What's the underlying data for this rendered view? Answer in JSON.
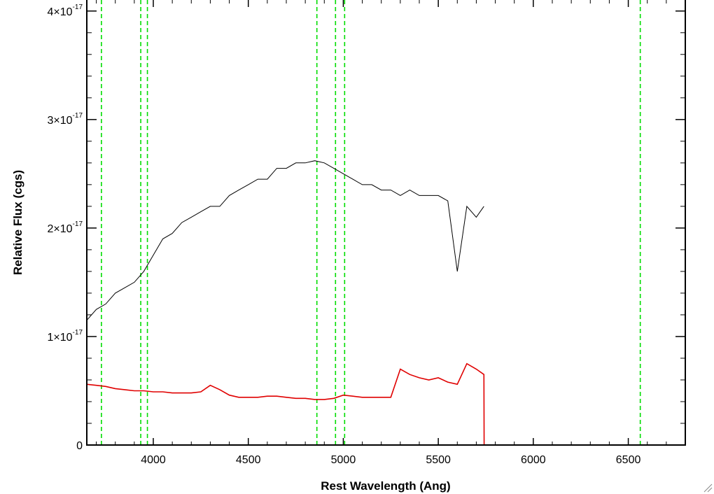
{
  "chart_data": {
    "type": "line",
    "title": "",
    "xlabel": "Rest Wavelength (Ang)",
    "ylabel": "Relative Flux (cgs)",
    "xlim": [
      3650,
      6800
    ],
    "ylim": [
      0,
      4.05e-17
    ],
    "x_ticks": [
      {
        "value": 4000,
        "label": "4000"
      },
      {
        "value": 4500,
        "label": "4500"
      },
      {
        "value": 5000,
        "label": "5000"
      },
      {
        "value": 5500,
        "label": "5500"
      },
      {
        "value": 6000,
        "label": "6000"
      },
      {
        "value": 6500,
        "label": "6500"
      }
    ],
    "y_ticks": [
      {
        "value": 0,
        "mantissa": "0",
        "exponent": ""
      },
      {
        "value": 1e-17,
        "mantissa": "1×10",
        "exponent": "-17"
      },
      {
        "value": 2e-17,
        "mantissa": "2×10",
        "exponent": "-17"
      },
      {
        "value": 3e-17,
        "mantissa": "3×10",
        "exponent": "-17"
      },
      {
        "value": 4e-17,
        "mantissa": "4×10",
        "exponent": "-17"
      }
    ],
    "reference_lines": [
      3727,
      3934,
      3969,
      4861,
      4959,
      5007,
      6563
    ],
    "series": [
      {
        "color": "#000000",
        "x": [
          3650,
          3700,
          3750,
          3800,
          3850,
          3900,
          3950,
          4000,
          4050,
          4100,
          4150,
          4200,
          4250,
          4300,
          4350,
          4400,
          4450,
          4500,
          4550,
          4600,
          4650,
          4700,
          4750,
          4800,
          4850,
          4900,
          4950,
          5000,
          5050,
          5100,
          5150,
          5200,
          5250,
          5300,
          5350,
          5400,
          5450,
          5500,
          5550,
          5600,
          5650,
          5700,
          5740
        ],
        "y": [
          1.15e-17,
          1.25e-17,
          1.3e-17,
          1.4e-17,
          1.45e-17,
          1.5e-17,
          1.6e-17,
          1.75e-17,
          1.9e-17,
          1.95e-17,
          2.05e-17,
          2.1e-17,
          2.15e-17,
          2.2e-17,
          2.2e-17,
          2.3e-17,
          2.35e-17,
          2.4e-17,
          2.45e-17,
          2.45e-17,
          2.55e-17,
          2.55e-17,
          2.6e-17,
          2.6e-17,
          2.62e-17,
          2.6e-17,
          2.55e-17,
          2.5e-17,
          2.45e-17,
          2.4e-17,
          2.4e-17,
          2.35e-17,
          2.35e-17,
          2.3e-17,
          2.35e-17,
          2.3e-17,
          2.3e-17,
          2.3e-17,
          2.25e-17,
          1.6e-17,
          2.2e-17,
          2.1e-17,
          2.2e-17
        ]
      },
      {
        "color": "#e00000",
        "x": [
          3650,
          3700,
          3750,
          3800,
          3850,
          3900,
          3950,
          4000,
          4050,
          4100,
          4150,
          4200,
          4250,
          4300,
          4350,
          4400,
          4450,
          4500,
          4550,
          4600,
          4650,
          4700,
          4750,
          4800,
          4850,
          4900,
          4950,
          5000,
          5050,
          5100,
          5150,
          5200,
          5250,
          5300,
          5350,
          5400,
          5450,
          5500,
          5550,
          5600,
          5650,
          5700,
          5740,
          5741,
          6000,
          6500,
          6800
        ],
        "y": [
          5.6e-18,
          5.5e-18,
          5.4e-18,
          5.2e-18,
          5.1e-18,
          5e-18,
          5e-18,
          4.9e-18,
          4.9e-18,
          4.8e-18,
          4.8e-18,
          4.8e-18,
          4.9e-18,
          5.5e-18,
          5.1e-18,
          4.6e-18,
          4.4e-18,
          4.4e-18,
          4.4e-18,
          4.5e-18,
          4.5e-18,
          4.4e-18,
          4.3e-18,
          4.3e-18,
          4.2e-18,
          4.2e-18,
          4.3e-18,
          4.6e-18,
          4.5e-18,
          4.4e-18,
          4.4e-18,
          4.4e-18,
          4.4e-18,
          7e-18,
          6.5e-18,
          6.2e-18,
          6e-18,
          6.2e-18,
          5.8e-18,
          5.6e-18,
          7.5e-18,
          7e-18,
          6.5e-18,
          0,
          0,
          0,
          0
        ]
      }
    ]
  }
}
